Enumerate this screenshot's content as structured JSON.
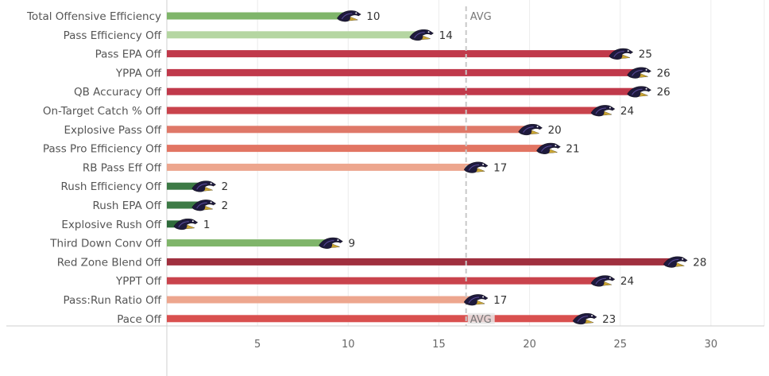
{
  "chart_data": {
    "type": "bar",
    "orientation": "horizontal",
    "categories": [
      "Total Offensive Efficiency",
      "Pass Efficiency Off",
      "Pass EPA Off",
      "YPPA Off",
      "QB Accuracy Off",
      "On-Target Catch % Off",
      "Explosive Pass Off",
      "Pass Pro Efficiency Off",
      "RB Pass Eff Off",
      "Rush Efficiency Off",
      "Rush EPA Off",
      "Explosive Rush Off",
      "Third Down Conv Off",
      "Red Zone Blend Off",
      "YPPT Off",
      "Pass:Run Ratio Off",
      "Pace Off"
    ],
    "values": [
      10,
      14,
      25,
      26,
      26,
      24,
      20,
      21,
      17,
      2,
      2,
      1,
      9,
      28,
      24,
      17,
      23
    ],
    "colors": [
      "#7fb56a",
      "#b5d6a2",
      "#c0394b",
      "#c0394b",
      "#c0394b",
      "#c9434c",
      "#df7868",
      "#e27563",
      "#eda68e",
      "#3d7a46",
      "#3d7a46",
      "#2f6b3b",
      "#7fb56a",
      "#a0303f",
      "#c9434c",
      "#eda68e",
      "#d9504f"
    ],
    "xlim": [
      0,
      32.5
    ],
    "xticks": [
      5,
      10,
      15,
      20,
      25,
      30
    ],
    "reference_line": {
      "label": "AVG",
      "value": 16.5
    },
    "grid": true,
    "icon": "ravens-logo-icon"
  }
}
